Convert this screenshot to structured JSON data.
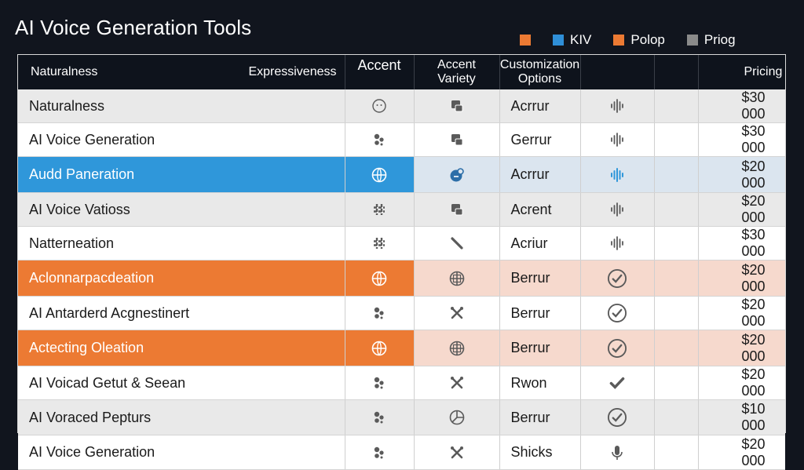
{
  "title": "AI Voice Generation Tools",
  "legend": [
    {
      "label": "",
      "color": "#ec7a33"
    },
    {
      "label": "KIV",
      "color": "#2f8fd8"
    },
    {
      "label": "Polop",
      "color": "#ec7a33"
    },
    {
      "label": "Priog",
      "color": "#8a8a8a"
    }
  ],
  "headers": {
    "col1_left": "Naturalness",
    "col1_right": "Expressiveness",
    "col2": "Accent",
    "col3_line1": "Accent",
    "col3_line2": "Variety",
    "col4_line1": "Customization",
    "col4_line2": "Options",
    "col7": "Pricing"
  },
  "rows": [
    {
      "name": "Naturalness",
      "style": "grey",
      "icon2": "smiley-icon",
      "icon3": "chat-box-icon",
      "option": "Acrrur",
      "icon5": "waveform-icon",
      "price": "$30 000"
    },
    {
      "name": "AI Voice Generation",
      "style": "white",
      "icon2": "dots-cluster-icon",
      "icon3": "chat-box-icon",
      "option": "Gerrur",
      "icon5": "waveform-icon",
      "price": "$30 000"
    },
    {
      "name": "Audd Paneration",
      "style": "blue",
      "icon2": "globe-icon",
      "icon3": "globe-badge-icon",
      "option": "Acrrur",
      "icon5": "waveform-icon",
      "price": "$20 000"
    },
    {
      "name": "AI Voice Vatioss",
      "style": "grey",
      "icon2": "hash-icon",
      "icon3": "chat-box-icon",
      "option": "Acrent",
      "icon5": "waveform-icon",
      "price": "$20 000"
    },
    {
      "name": "Natterneation",
      "style": "white",
      "icon2": "hash-icon",
      "icon3": "pen-icon",
      "option": "Acriur",
      "icon5": "waveform-icon",
      "price": "$30 000"
    },
    {
      "name": "Aclonnarpacdeation",
      "style": "orange",
      "icon2": "globe-icon",
      "icon3": "grid-circle-icon",
      "option": "Berrur",
      "icon5": "check-circle-icon",
      "price": "$20 000"
    },
    {
      "name": "AI Antarderd Acgnestinert",
      "style": "white",
      "icon2": "dots-cluster-icon",
      "icon3": "cross-tools-icon",
      "option": "Berrur",
      "icon5": "check-circle-icon",
      "price": "$20 000"
    },
    {
      "name": "Actecting Oleation",
      "style": "orange",
      "icon2": "globe-icon",
      "icon3": "grid-circle-icon",
      "option": "Berrur",
      "icon5": "check-circle-icon",
      "price": "$20 000"
    },
    {
      "name": "AI Voicad Getut & Seean",
      "style": "white",
      "icon2": "dots-cluster-icon",
      "icon3": "cross-tools-icon",
      "option": "Rwon",
      "icon5": "check-icon",
      "price": "$20 000"
    },
    {
      "name": "AI Voraced Pepturs",
      "style": "grey",
      "icon2": "dots-cluster-icon",
      "icon3": "pie-circle-icon",
      "option": "Berrur",
      "icon5": "check-circle-icon",
      "price": "$10 000"
    },
    {
      "name": "AI Voice Generation",
      "style": "white",
      "icon2": "dots-cluster-icon",
      "icon3": "cross-tools-icon",
      "option": "Shicks",
      "icon5": "microphone-icon",
      "price": "$20 000"
    }
  ]
}
